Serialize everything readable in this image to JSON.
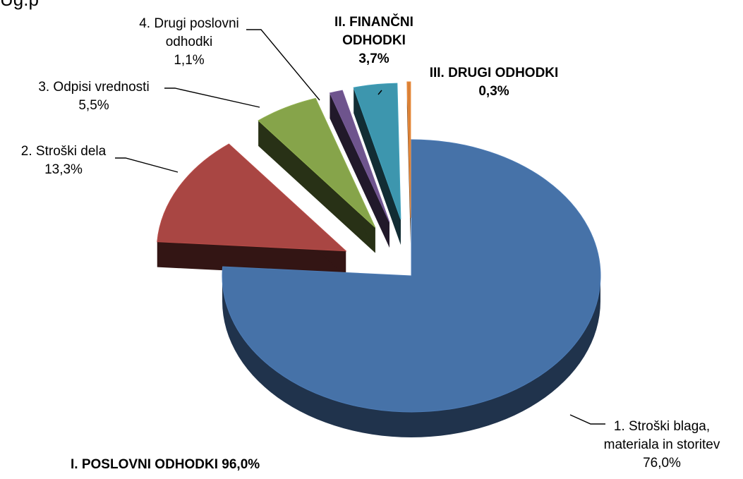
{
  "chart_data": {
    "type": "pie",
    "style": "3d-exploded",
    "title": "",
    "slices": [
      {
        "label_lines": [
          "1. Stroški blaga,",
          "materiala in storitev",
          "76,0%"
        ],
        "value": 76.0,
        "color": "#4672a8"
      },
      {
        "label_lines": [
          "2. Stroški dela",
          "13,3%"
        ],
        "value": 13.3,
        "color": "#a94643"
      },
      {
        "label_lines": [
          "3. Odpisi vrednosti",
          "5,5%"
        ],
        "value": 5.5,
        "color": "#86a44a"
      },
      {
        "label_lines": [
          "4. Drugi poslovni",
          "odhodki",
          "1,1%"
        ],
        "value": 1.1,
        "color": "#6e548d"
      },
      {
        "label_lines": [
          "II. FINANČNI",
          "ODHODKI",
          "3,7%"
        ],
        "value": 3.7,
        "color": "#3d96ae"
      },
      {
        "label_lines": [
          "III. DRUGI ODHODKI",
          "0,3%"
        ],
        "value": 0.3,
        "color": "#da8137"
      }
    ],
    "group_labels": [
      {
        "text": "I. POSLOVNI ODHODKI 96,0%"
      }
    ],
    "top_fragment": "Ug.p"
  }
}
